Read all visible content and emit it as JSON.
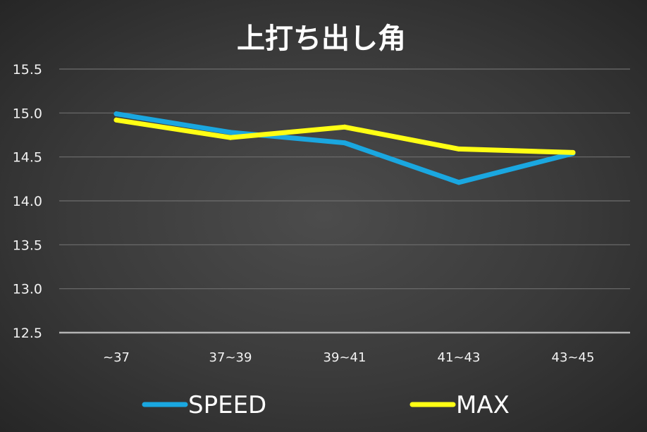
{
  "chart_data": {
    "type": "line",
    "title": "上打ち出し角",
    "categories": [
      "~37",
      "37~39",
      "39~41",
      "41~43",
      "43~45"
    ],
    "series": [
      {
        "name": "SPEED",
        "color": "#1aa7e0",
        "values": [
          14.99,
          14.78,
          14.66,
          14.21,
          14.54
        ]
      },
      {
        "name": "MAX",
        "color": "#ffff14",
        "values": [
          14.92,
          14.72,
          14.84,
          14.59,
          14.55
        ]
      }
    ],
    "ylim": [
      12.5,
      15.5
    ],
    "yticks": [
      "12.5",
      "13.0",
      "13.5",
      "14.0",
      "14.5",
      "15.0",
      "15.5"
    ],
    "grid": true,
    "legend_position": "bottom"
  }
}
